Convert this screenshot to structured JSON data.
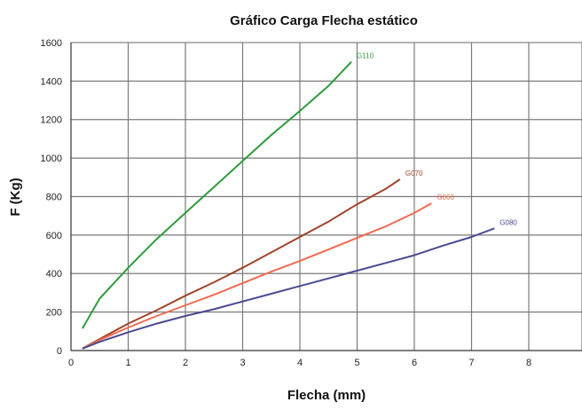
{
  "chart_data": {
    "type": "line",
    "title": "Gráfico Carga Flecha estático",
    "xlabel": "Flecha (mm)",
    "ylabel": "F (Kg)",
    "xlim": [
      0,
      9
    ],
    "ylim": [
      0,
      1600
    ],
    "x_ticks": [
      "0",
      "1",
      "2",
      "3",
      "4",
      "5",
      "6",
      "7",
      "8",
      "9"
    ],
    "y_ticks": [
      "0",
      "200",
      "400",
      "600",
      "800",
      "1000",
      "1200",
      "1400",
      "1600"
    ],
    "grid": true,
    "legend": "none",
    "series": [
      {
        "name": "G110",
        "color": "#2e9a3c",
        "x": [
          0.2,
          0.5,
          1.0,
          1.5,
          2.0,
          2.5,
          3.0,
          3.5,
          4.0,
          4.5,
          4.9
        ],
        "y": [
          115,
          270,
          430,
          580,
          715,
          850,
          985,
          1120,
          1245,
          1375,
          1500
        ]
      },
      {
        "name": "G070",
        "color": "#a0442a",
        "x": [
          0.2,
          0.5,
          1.0,
          1.5,
          2.0,
          2.5,
          3.0,
          3.5,
          4.0,
          4.5,
          5.0,
          5.5,
          5.75
        ],
        "y": [
          10,
          60,
          140,
          210,
          285,
          355,
          430,
          510,
          590,
          670,
          760,
          840,
          890
        ]
      },
      {
        "name": "G060",
        "color": "#f06a50",
        "x": [
          0.2,
          0.5,
          1.0,
          1.5,
          2.0,
          2.5,
          3.0,
          3.5,
          4.0,
          4.5,
          5.0,
          5.5,
          6.0,
          6.3
        ],
        "y": [
          10,
          55,
          120,
          180,
          235,
          290,
          350,
          410,
          465,
          525,
          585,
          645,
          715,
          765
        ]
      },
      {
        "name": "G080",
        "color": "#4a4a92",
        "x": [
          0.2,
          0.5,
          1.0,
          1.5,
          2.0,
          2.5,
          3.0,
          3.5,
          4.0,
          4.5,
          5.0,
          5.5,
          6.0,
          6.5,
          7.0,
          7.4
        ],
        "y": [
          10,
          45,
          95,
          140,
          180,
          215,
          255,
          295,
          335,
          375,
          415,
          455,
          495,
          545,
          590,
          635
        ]
      }
    ]
  }
}
